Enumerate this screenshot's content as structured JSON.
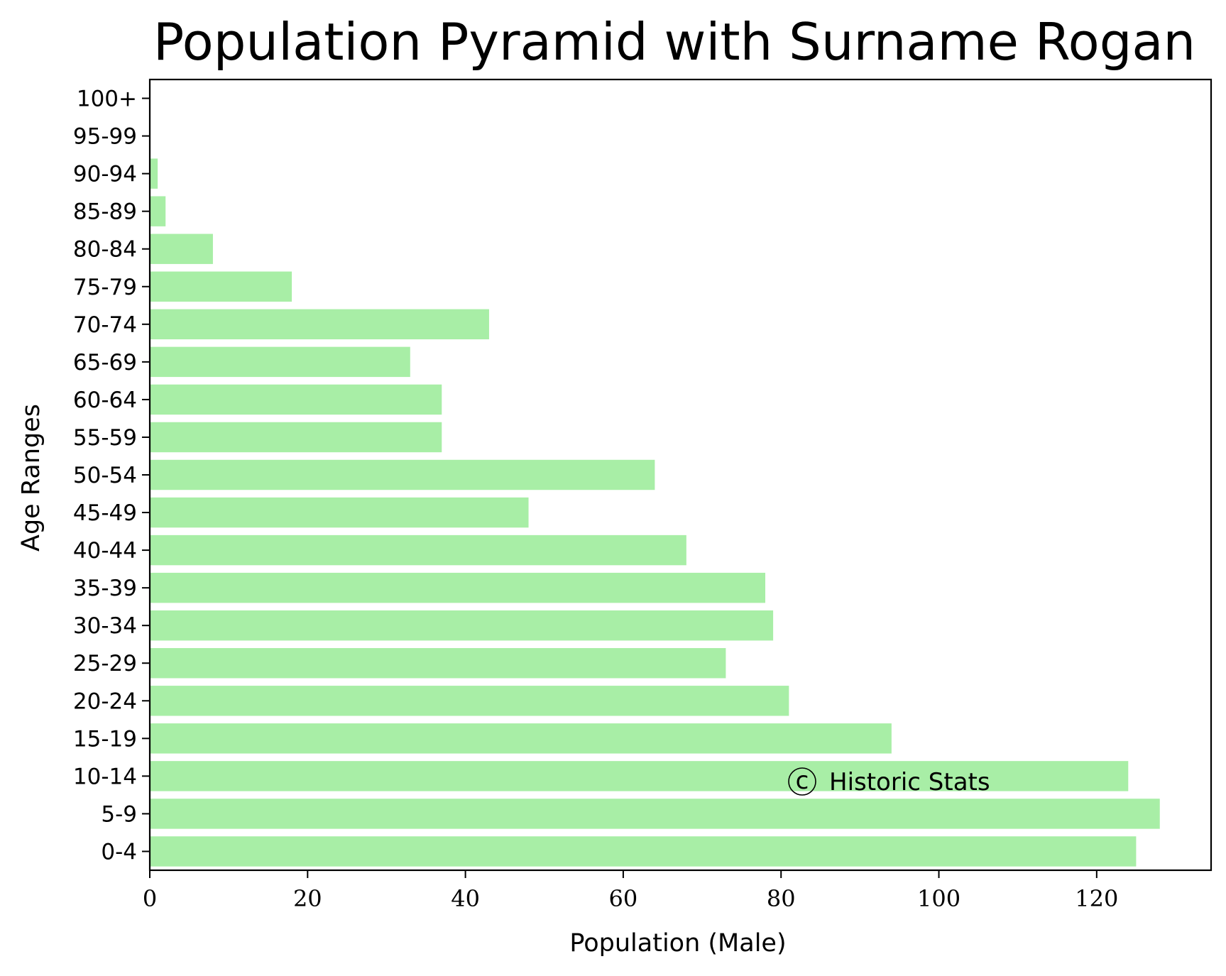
{
  "chart_data": {
    "type": "bar",
    "orientation": "horizontal",
    "title": "Population Pyramid with Surname Rogan",
    "xlabel": "Population (Male)",
    "ylabel": "Age Ranges",
    "categories": [
      "0-4",
      "5-9",
      "10-14",
      "15-19",
      "20-24",
      "25-29",
      "30-34",
      "35-39",
      "40-44",
      "45-49",
      "50-54",
      "55-59",
      "60-64",
      "65-69",
      "70-74",
      "75-79",
      "80-84",
      "85-89",
      "90-94",
      "95-99",
      "100+"
    ],
    "values": [
      125,
      128,
      124,
      94,
      81,
      73,
      79,
      78,
      68,
      48,
      64,
      37,
      37,
      33,
      43,
      18,
      8,
      2,
      1,
      0,
      0
    ],
    "xlim": [
      0,
      134.5
    ],
    "xticks": [
      0,
      20,
      40,
      60,
      80,
      100,
      120
    ],
    "grid": false,
    "bar_color": "#a8eea6",
    "watermark": {
      "symbol": "c",
      "text": "Historic Stats"
    }
  }
}
